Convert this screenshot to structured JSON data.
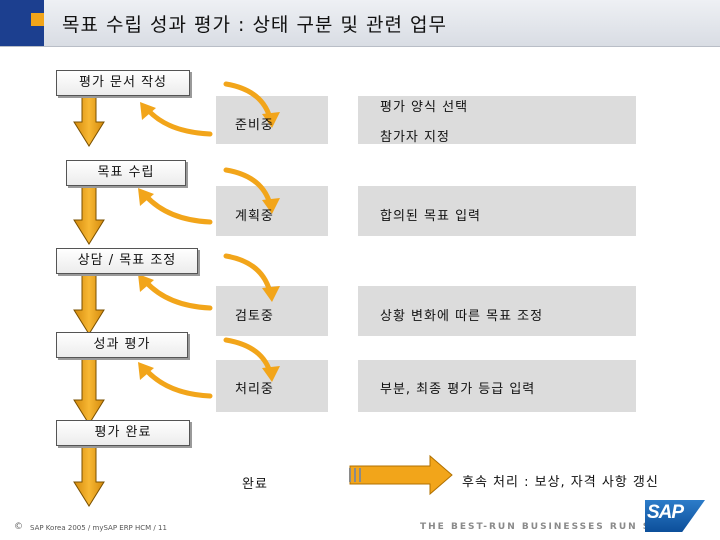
{
  "title": "목표 수립 성과 평가 : 상태 구분 및 관련 업무",
  "stages": [
    {
      "label": "평가 문서 작성"
    },
    {
      "label": "목표 수립"
    },
    {
      "label": "상담 / 목표 조정"
    },
    {
      "label": "성과 평가"
    },
    {
      "label": "평가 완료"
    }
  ],
  "statuses": [
    {
      "label": "준비중",
      "description": [
        "평가 양식 선택",
        "참가자 지정"
      ]
    },
    {
      "label": "계획중",
      "description": [
        "합의된 목표 입력"
      ]
    },
    {
      "label": "검토중",
      "description": [
        "상황 변화에 따른 목표 조정"
      ]
    },
    {
      "label": "처리중",
      "description": [
        "부분, 최종 평가 등급 입력"
      ]
    },
    {
      "label": "완료",
      "description": [
        "후속 처리 : 보상, 자격 사항 갱신"
      ]
    }
  ],
  "footer": {
    "copyright_symbol": "©",
    "copyright_text": "SAP Korea 2005 / mySAP ERP HCM / 11",
    "tagline": "THE BEST-RUN BUSINESSES RUN SAP",
    "logo_text": "SAP"
  },
  "colors": {
    "title_blue": "#1c3f8f",
    "title_orange": "#f2a51a",
    "arrow_orange": "#f2a51a",
    "box_gray": "#dcdcdc"
  }
}
